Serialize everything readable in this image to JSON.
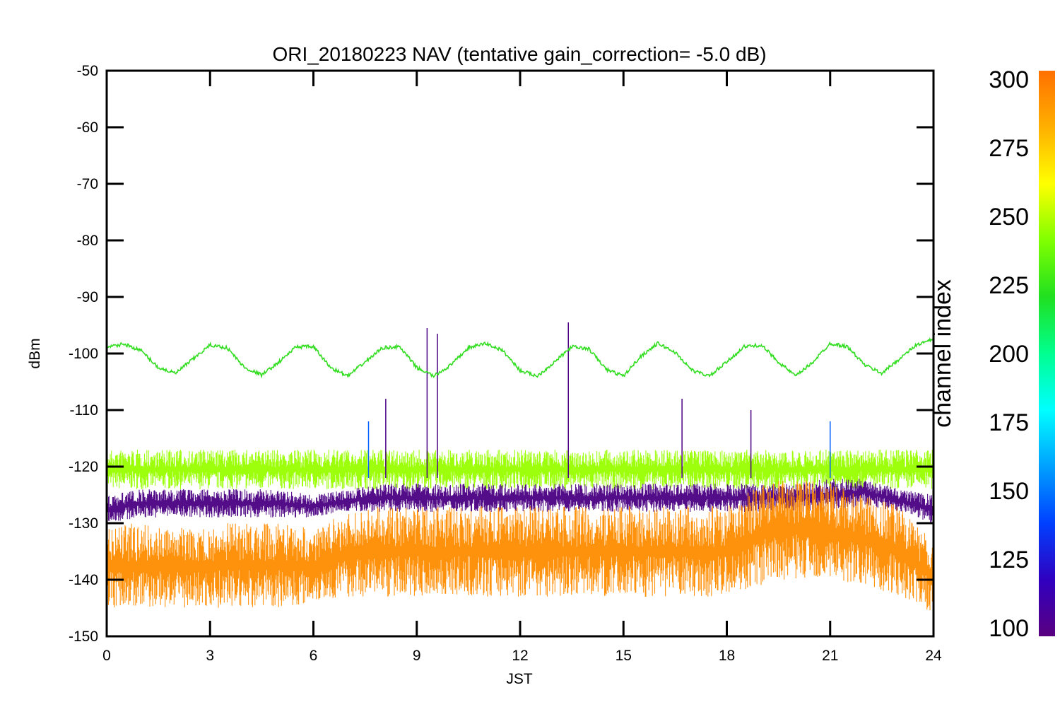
{
  "chart_data": {
    "type": "line",
    "title": "ORI_20180223 NAV (tentative gain_correction= -5.0 dB)",
    "xlabel": "JST",
    "ylabel": "dBm",
    "xlim": [
      0,
      24
    ],
    "ylim": [
      -150,
      -50
    ],
    "xticks": [
      0,
      3,
      6,
      9,
      12,
      15,
      18,
      21,
      24
    ],
    "yticks": [
      -50,
      -60,
      -70,
      -80,
      -90,
      -100,
      -110,
      -120,
      -130,
      -140,
      -150
    ],
    "grid": false,
    "colorbar": {
      "label": "channel index",
      "range": [
        100,
        300
      ],
      "ticks": [
        300,
        275,
        250,
        225,
        200,
        175,
        150,
        125,
        100
      ],
      "colors": [
        "#5a0080",
        "#3000c0",
        "#0040ff",
        "#00a0ff",
        "#00ffff",
        "#00ff90",
        "#20e020",
        "#80ff00",
        "#ffff00",
        "#ffb000",
        "#ff7000"
      ]
    },
    "series": [
      {
        "channel_index": 230,
        "color": "#33dd22",
        "x": [
          0,
          0.5,
          1.0,
          1.5,
          2.0,
          2.5,
          3.0,
          3.5,
          4.0,
          4.5,
          5.0,
          5.5,
          6.0,
          6.5,
          7.0,
          7.5,
          8.0,
          8.5,
          9.0,
          9.5,
          10.0,
          10.5,
          11.0,
          11.5,
          12.0,
          12.5,
          13.0,
          13.5,
          14.0,
          14.5,
          15.0,
          15.5,
          16.0,
          16.5,
          17.0,
          17.5,
          18.0,
          18.5,
          19.0,
          19.5,
          20.0,
          20.5,
          21.0,
          21.5,
          22.0,
          22.5,
          23.0,
          23.5,
          24.0
        ],
        "y": [
          -99,
          -98.3,
          -99.5,
          -102.5,
          -103.5,
          -101,
          -98.5,
          -99.0,
          -102.5,
          -103.8,
          -101.5,
          -98.8,
          -98.8,
          -102.5,
          -104,
          -101.5,
          -99,
          -98.8,
          -102.5,
          -104,
          -102,
          -99,
          -98.2,
          -99.5,
          -103,
          -104,
          -101.5,
          -98.8,
          -99.2,
          -102.8,
          -104,
          -100.5,
          -98.2,
          -99.8,
          -103,
          -104,
          -101.5,
          -98.8,
          -98.5,
          -101.5,
          -104,
          -101.5,
          -98.2,
          -98.8,
          -102,
          -103.5,
          -101,
          -98.5,
          -97.5
        ]
      },
      {
        "channel_index": 260,
        "color": "#99ff00",
        "band": "upper",
        "x": [
          0,
          3,
          6,
          9,
          12,
          15,
          18,
          21,
          24
        ],
        "y_min": [
          -124,
          -124,
          -124,
          -124,
          -124,
          -124,
          -124,
          -124,
          -124
        ],
        "y_max": [
          -117,
          -117,
          -117,
          -117,
          -117,
          -117,
          -117,
          -117,
          -117
        ]
      },
      {
        "channel_index": 110,
        "color": "#4b0082",
        "x": [
          0,
          1,
          2,
          3,
          4,
          5,
          6,
          7,
          8,
          9,
          10,
          11,
          12,
          13,
          14,
          15,
          16,
          17,
          18,
          19,
          20,
          21,
          22,
          23,
          24
        ],
        "y_min": [
          -130,
          -129,
          -129,
          -129,
          -129,
          -129,
          -129,
          -128,
          -128,
          -128,
          -128,
          -128,
          -128,
          -128,
          -128,
          -128,
          -128,
          -128,
          -128,
          -128,
          -128,
          -128,
          -127,
          -128,
          -130
        ],
        "y_max": [
          -125,
          -124,
          -124,
          -124,
          -124,
          -124,
          -125,
          -124,
          -123,
          -123,
          -123,
          -123,
          -123,
          -123,
          -123,
          -123,
          -123,
          -123,
          -123,
          -123,
          -123,
          -122,
          -122,
          -124,
          -125
        ]
      },
      {
        "channel_index": 290,
        "color": "#ff8c00",
        "x": [
          0,
          1,
          2,
          3,
          4,
          5,
          6,
          7,
          8,
          9,
          10,
          11,
          12,
          13,
          14,
          15,
          16,
          17,
          18,
          19,
          20,
          21,
          22,
          23,
          24
        ],
        "y_min": [
          -145,
          -145,
          -145,
          -145,
          -145,
          -145,
          -144,
          -143,
          -143,
          -143,
          -143,
          -143,
          -143,
          -143,
          -143,
          -143,
          -143,
          -143,
          -143,
          -141,
          -140,
          -140,
          -141,
          -143,
          -146
        ],
        "y_max": [
          -130,
          -130,
          -131,
          -130,
          -130,
          -130,
          -131,
          -128,
          -127,
          -127,
          -127,
          -127,
          -127,
          -127,
          -127,
          -127,
          -127,
          -127,
          -127,
          -123,
          -122,
          -123,
          -125,
          -127,
          -133
        ]
      }
    ],
    "spikes": [
      {
        "x": 8.1,
        "y": -108,
        "color": "#4b0082"
      },
      {
        "x": 9.3,
        "y": -95.5,
        "color": "#4b0082"
      },
      {
        "x": 9.6,
        "y": -96.5,
        "color": "#4b0082"
      },
      {
        "x": 13.4,
        "y": -94.5,
        "color": "#4b0082"
      },
      {
        "x": 7.6,
        "y": -112,
        "color": "#0060ff"
      },
      {
        "x": 18.7,
        "y": -110,
        "color": "#4b0082"
      },
      {
        "x": 16.7,
        "y": -108,
        "color": "#4b0082"
      },
      {
        "x": 21.0,
        "y": -112,
        "color": "#0060ff"
      }
    ]
  }
}
